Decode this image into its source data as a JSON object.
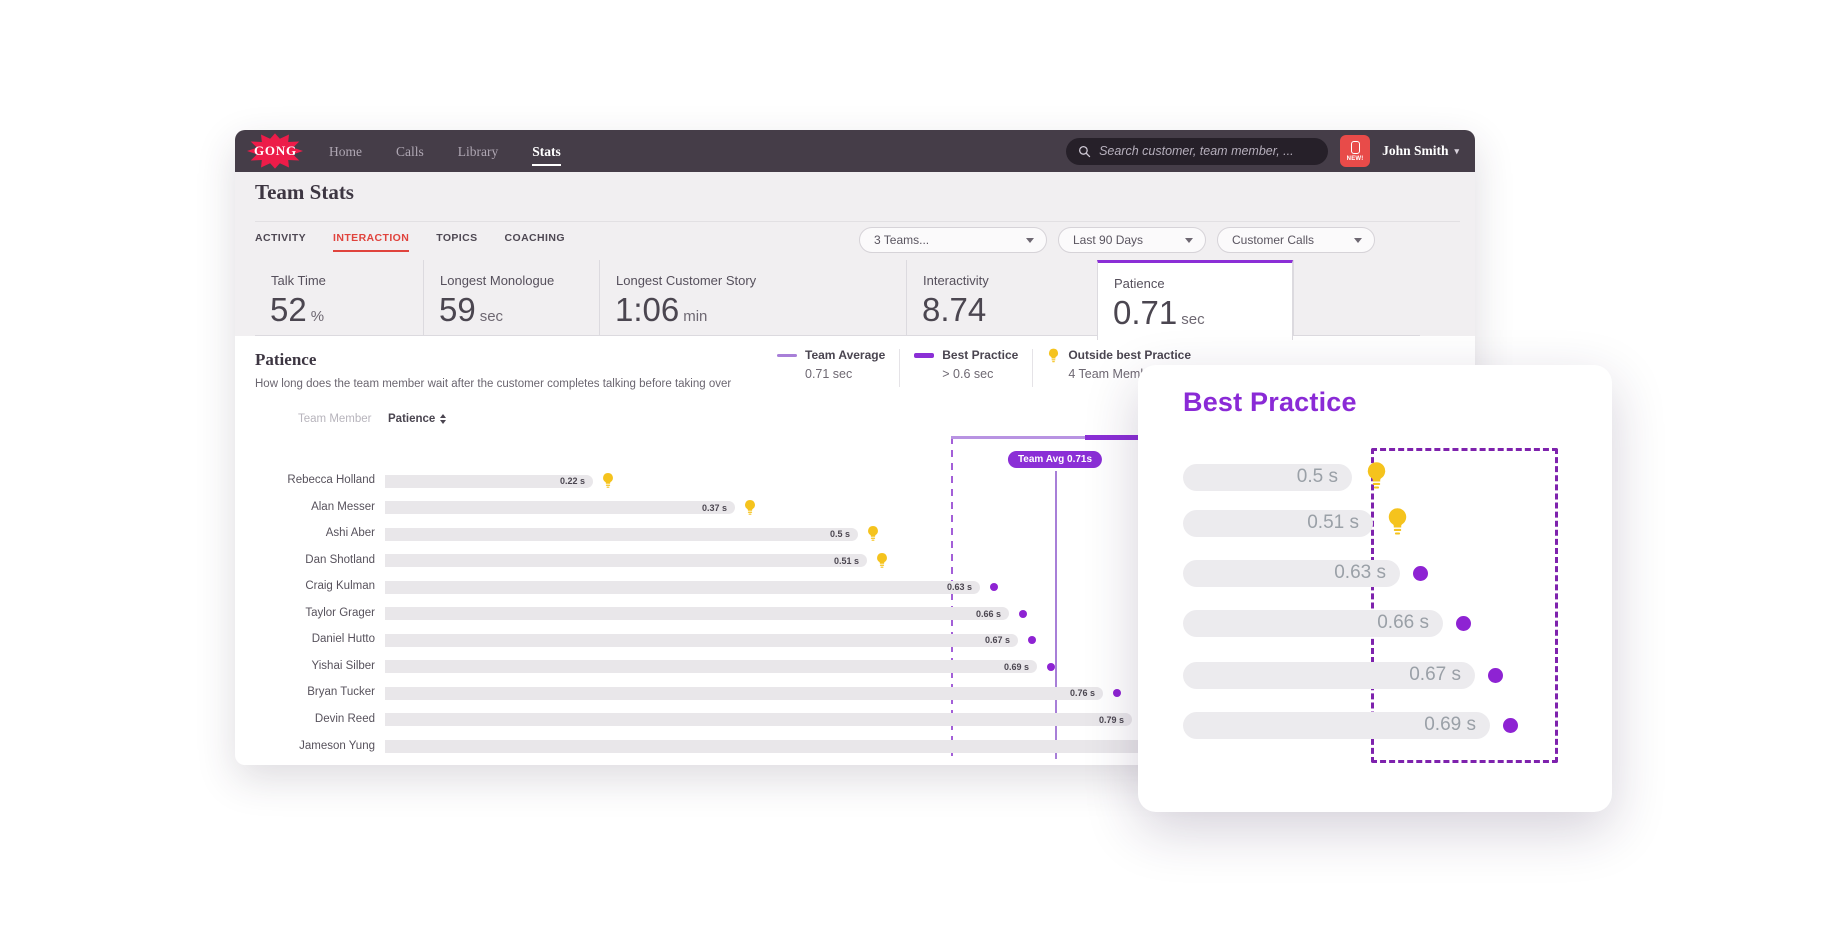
{
  "colors": {
    "accent_purple": "#8B2FD6",
    "light_purple": "#A87FD8",
    "brand_red": "#ED1C49",
    "alert_red": "#E0433D",
    "bulb_yellow": "#F5C31D",
    "bar_gray": "#E9E7EA",
    "navbar_dark": "#453D48"
  },
  "navbar": {
    "logo": "GONG",
    "items": [
      {
        "label": "Home",
        "active": false
      },
      {
        "label": "Calls",
        "active": false
      },
      {
        "label": "Library",
        "active": false
      },
      {
        "label": "Stats",
        "active": true
      }
    ],
    "search_placeholder": "Search customer, team member, ...",
    "new_badge_label": "NEW!",
    "user_name": "John Smith"
  },
  "page_title": "Team Stats",
  "tabs": [
    {
      "label": "ACTIVITY",
      "active": false
    },
    {
      "label": "INTERACTION",
      "active": true
    },
    {
      "label": "TOPICS",
      "active": false
    },
    {
      "label": "COACHING",
      "active": false
    }
  ],
  "filters": [
    {
      "value": "3 Teams..."
    },
    {
      "value": "Last 90 Days"
    },
    {
      "value": "Customer Calls"
    }
  ],
  "metric_cards": [
    {
      "label": "Talk Time",
      "value": "52",
      "unit": "%",
      "selected": false
    },
    {
      "label": "Longest Monologue",
      "value": "59",
      "unit": "sec",
      "selected": false
    },
    {
      "label": "Longest Customer Story",
      "value": "1:06",
      "unit": "min",
      "selected": false
    },
    {
      "label": "Interactivity",
      "value": "8.74",
      "unit": "",
      "selected": false
    },
    {
      "label": "Patience",
      "value": "0.71",
      "unit": "sec",
      "selected": true
    }
  ],
  "patience_section": {
    "title": "Patience",
    "subtitle": "How long does the team member wait after the customer completes talking before taking over",
    "legend": [
      {
        "swatch": "line-thin",
        "label": "Team Average",
        "value": "0.71 sec"
      },
      {
        "swatch": "line-thick",
        "label": "Best Practice",
        "value": "> 0.6 sec"
      },
      {
        "swatch": "bulb",
        "label": "Outside best Practice",
        "value": "4 Team Members"
      }
    ],
    "col_team_member": "Team Member",
    "col_patience": "Patience",
    "team_avg_badge": "Team Avg 0.71s"
  },
  "chart_data": {
    "type": "bar",
    "orientation": "horizontal",
    "title": "Patience",
    "unit": "seconds",
    "xlim": [
      0,
      0.85
    ],
    "team_average": 0.71,
    "best_practice_threshold": 0.6,
    "outside_best_practice_count": 4,
    "categories": [
      "Rebecca Holland",
      "Alan Messer",
      "Ashi Aber",
      "Dan Shotland",
      "Craig Kulman",
      "Taylor Grager",
      "Daniel Hutto",
      "Yishai Silber",
      "Bryan Tucker",
      "Devin Reed",
      "Jameson Yung"
    ],
    "values": [
      0.22,
      0.37,
      0.5,
      0.51,
      0.63,
      0.66,
      0.67,
      0.69,
      0.76,
      0.79,
      null
    ],
    "value_labels": [
      "0.22 s",
      "0.37 s",
      "0.5 s",
      "0.51 s",
      "0.63 s",
      "0.66 s",
      "0.67 s",
      "0.69 s",
      "0.76 s",
      "0.79 s",
      ""
    ],
    "markers": [
      "bulb",
      "bulb",
      "bulb",
      "bulb",
      "dot",
      "dot",
      "dot",
      "dot",
      "dot",
      "none",
      "none"
    ]
  },
  "overlay_card": {
    "title": "Best Practice",
    "rows": [
      {
        "value": 0.5,
        "label": "0.5 s",
        "marker": "bulb"
      },
      {
        "value": 0.51,
        "label": "0.51 s",
        "marker": "bulb"
      },
      {
        "value": 0.63,
        "label": "0.63 s",
        "marker": "dot"
      },
      {
        "value": 0.66,
        "label": "0.66 s",
        "marker": "dot"
      },
      {
        "value": 0.67,
        "label": "0.67 s",
        "marker": "dot"
      },
      {
        "value": 0.69,
        "label": "0.69 s",
        "marker": "dot"
      }
    ]
  }
}
